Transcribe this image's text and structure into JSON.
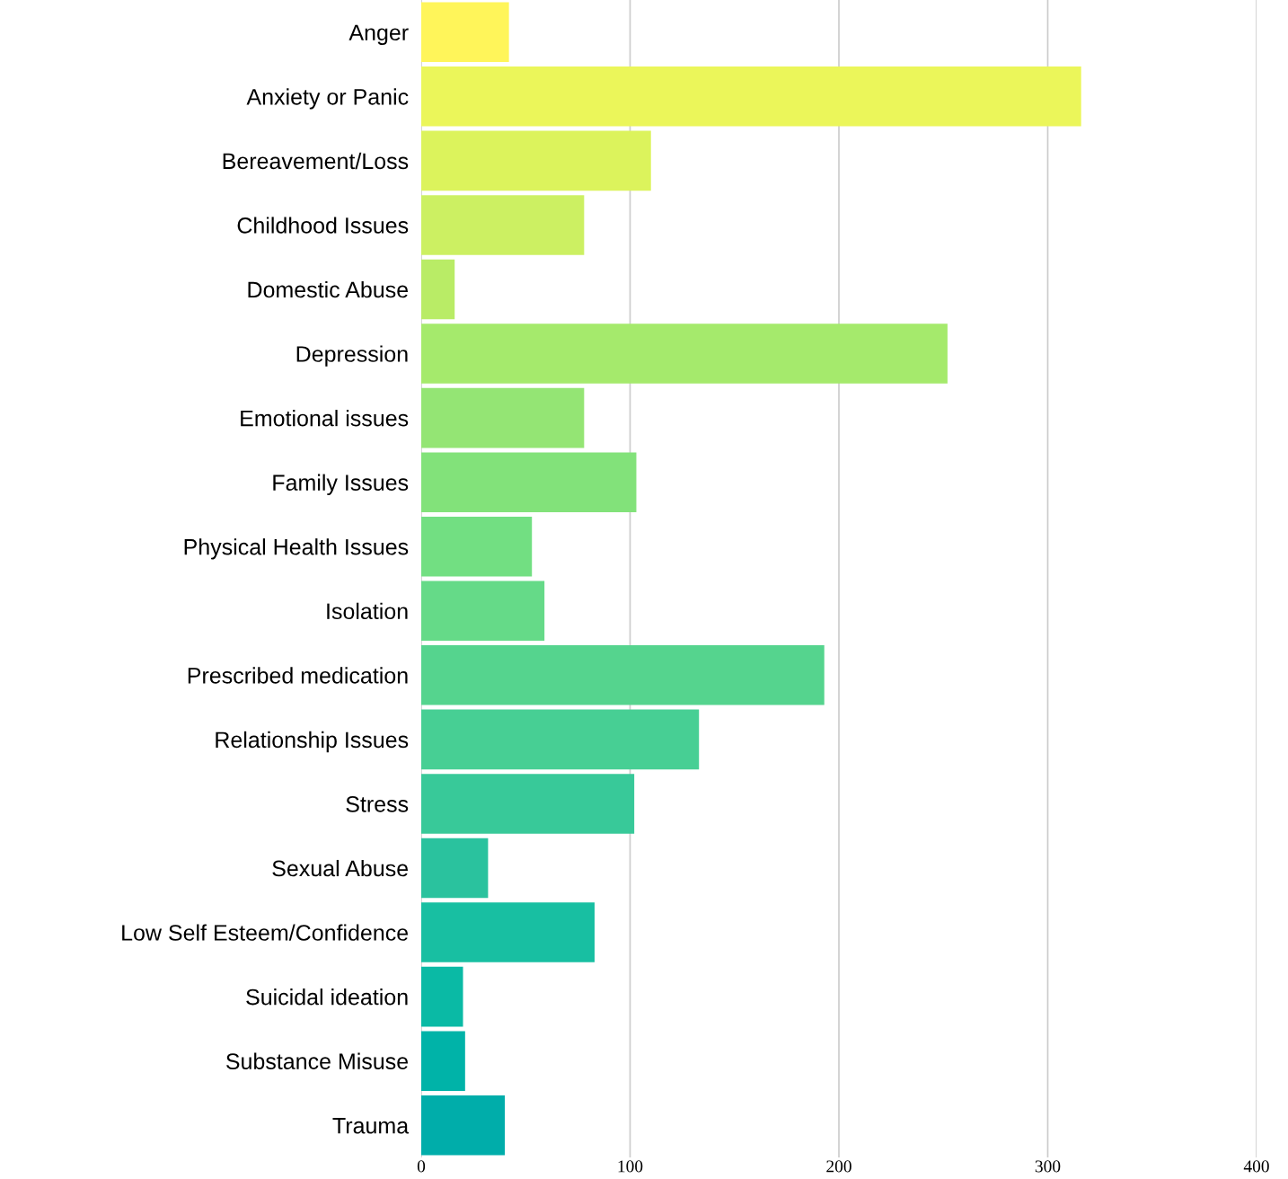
{
  "chart_data": {
    "type": "bar",
    "orientation": "horizontal",
    "categories": [
      "Anger",
      "Anxiety or Panic",
      "Bereavement/Loss",
      "Childhood Issues",
      "Domestic Abuse",
      "Depression",
      "Emotional issues",
      "Family Issues",
      "Physical Health Issues",
      "Isolation",
      "Prescribed medication",
      "Relationship Issues",
      "Stress",
      "Sexual Abuse",
      "Low Self Esteem/Confidence",
      "Suicidal ideation",
      "Substance Misuse",
      "Trauma"
    ],
    "values": [
      42,
      316,
      110,
      78,
      16,
      252,
      78,
      103,
      53,
      59,
      193,
      133,
      102,
      32,
      83,
      20,
      21,
      40
    ],
    "colors": [
      "#fff55a",
      "#ebf65a",
      "#dcf35c",
      "#ccf062",
      "#b9ec66",
      "#a5ea6c",
      "#94e574",
      "#82e27a",
      "#72df82",
      "#65da88",
      "#55d48e",
      "#47cf94",
      "#38c999",
      "#2ac29e",
      "#18bfa2",
      "#0abaa5",
      "#00b3a8",
      "#00adaa"
    ],
    "xlim": [
      0,
      400
    ],
    "xticks": [
      0,
      100,
      200,
      300,
      400
    ],
    "grid": "x"
  }
}
